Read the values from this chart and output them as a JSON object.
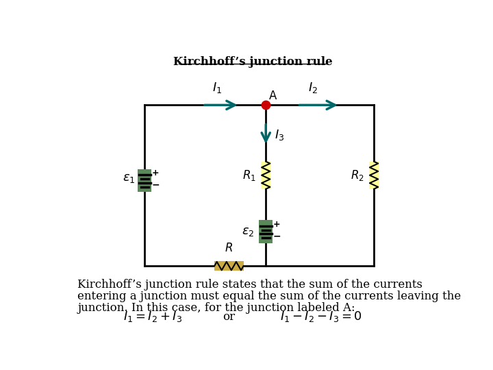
{
  "title": "Kirchhoff’s junction rule",
  "background_color": "#ffffff",
  "circuit_line_color": "#000000",
  "arrow_color": "#006666",
  "junction_color": "#cc0000",
  "resistor_bg_color": "#ffff99",
  "battery_bg_color": "#5a8a5a",
  "resistor_r_bg_color": "#ccaa44",
  "text_color": "#000000",
  "body_line1": "Kirchhoff’s junction rule states that the sum of the currents",
  "body_line2": "entering a junction must equal the sum of the currents leaving the",
  "body_line3": "junction. In this case, for the junction labeled A:",
  "formula_left": "$I_1 = I_2 + I_3$",
  "formula_or": "or",
  "formula_right": "$I_1 - I_2 - I_3 = 0$"
}
